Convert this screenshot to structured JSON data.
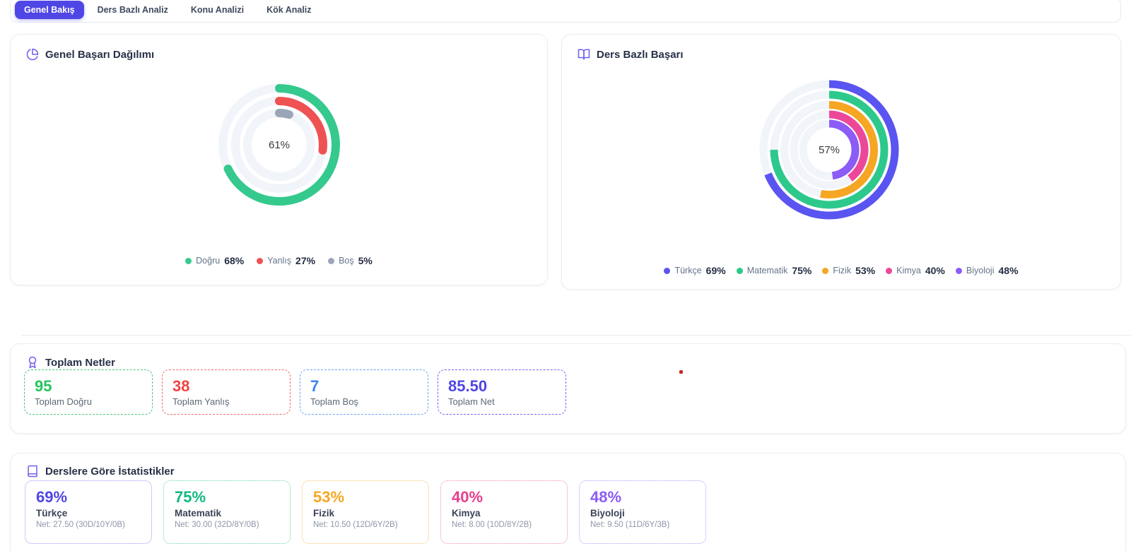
{
  "tabs": [
    {
      "label": "Genel Bakış",
      "active": true
    },
    {
      "label": "Ders Bazlı Analiz",
      "active": false
    },
    {
      "label": "Konu Analizi",
      "active": false
    },
    {
      "label": "Kök Analiz",
      "active": false
    }
  ],
  "colors": {
    "accent": "#4f46e5",
    "green": "#35c98e",
    "red": "#ee5253",
    "gray": "#9aa6b8",
    "orange": "#f5a623",
    "pink": "#ec4899",
    "purple": "#8b5cf6",
    "track": "#f1f4f9"
  },
  "cards": {
    "distribution": {
      "title": "Genel Başarı Dağılımı",
      "icon": "pie-chart-icon",
      "center_label": "61%",
      "legend": [
        {
          "label": "Doğru",
          "value": "68%",
          "color": "#35c98e"
        },
        {
          "label": "Yanlış",
          "value": "27%",
          "color": "#ee5253"
        },
        {
          "label": "Boş",
          "value": "5%",
          "color": "#9aa6b8"
        }
      ]
    },
    "subjects": {
      "title": "Ders Bazlı Başarı",
      "icon": "book-open-icon",
      "center_label": "57%",
      "legend": [
        {
          "label": "Türkçe",
          "value": "69%",
          "color": "#5a54f1"
        },
        {
          "label": "Matematik",
          "value": "75%",
          "color": "#2dc98c"
        },
        {
          "label": "Fizik",
          "value": "53%",
          "color": "#f5a623"
        },
        {
          "label": "Kimya",
          "value": "40%",
          "color": "#ec4899"
        },
        {
          "label": "Biyoloji",
          "value": "48%",
          "color": "#8b5cf6"
        }
      ]
    }
  },
  "chart_data": [
    {
      "type": "pie",
      "variant": "concentric-radial-bars",
      "title": "Genel Başarı Dağılımı",
      "center_label": "61%",
      "unit": "%",
      "start_angle_deg": 0,
      "direction": "clockwise",
      "rounded_caps": true,
      "track_color": "#f1f4f9",
      "series": [
        {
          "name": "Doğru",
          "value": 68,
          "color": "#35c98e"
        },
        {
          "name": "Yanlış",
          "value": 27,
          "color": "#ee5253"
        },
        {
          "name": "Boş",
          "value": 5,
          "color": "#9aa6b8"
        }
      ],
      "legend_position": "bottom"
    },
    {
      "type": "pie",
      "variant": "concentric-radial-bars",
      "title": "Ders Bazlı Başarı",
      "center_label": "57%",
      "unit": "%",
      "start_angle_deg": 0,
      "direction": "clockwise",
      "rounded_caps": false,
      "track_color": "#f1f4f9",
      "series": [
        {
          "name": "Türkçe",
          "value": 69,
          "color": "#5a54f1"
        },
        {
          "name": "Matematik",
          "value": 75,
          "color": "#2dc98c"
        },
        {
          "name": "Fizik",
          "value": 53,
          "color": "#f5a623"
        },
        {
          "name": "Kimya",
          "value": 40,
          "color": "#ec4899"
        },
        {
          "name": "Biyoloji",
          "value": 48,
          "color": "#8b5cf6"
        }
      ],
      "legend_position": "bottom"
    }
  ],
  "totals": {
    "title": "Toplam Netler",
    "icon": "award-icon",
    "stats": [
      {
        "value": "95",
        "label": "Toplam Doğru",
        "color": "#22c55e",
        "border": "#4cc37e"
      },
      {
        "value": "38",
        "label": "Toplam Yanlış",
        "color": "#ef4444",
        "border": "#f16a6a"
      },
      {
        "value": "7",
        "label": "Toplam Boş",
        "color": "#3b82f6",
        "border": "#6aa1f7"
      },
      {
        "value": "85.50",
        "label": "Toplam Net",
        "color": "#4f46e5",
        "border": "#6f66ee"
      }
    ]
  },
  "subject_stats": {
    "title": "Derslere Göre İstatistikler",
    "icon": "book-icon",
    "items": [
      {
        "pct": "69%",
        "name": "Türkçe",
        "net": "Net: 27.50 (30D/10Y/0B)",
        "color": "#4f46e5",
        "border": "#9b91f3"
      },
      {
        "pct": "75%",
        "name": "Matematik",
        "net": "Net: 30.00 (32D/8Y/0B)",
        "color": "#10b981",
        "border": "#6cd4ab"
      },
      {
        "pct": "53%",
        "name": "Fizik",
        "net": "Net: 10.50 (12D/6Y/2B)",
        "color": "#f5a623",
        "border": "#f8c572"
      },
      {
        "pct": "40%",
        "name": "Kimya",
        "net": "Net: 8.00 (10D/8Y/2B)",
        "color": "#e83e8c",
        "border": "#f08bbc"
      },
      {
        "pct": "48%",
        "name": "Biyoloji",
        "net": "Net: 9.50 (11D/6Y/3B)",
        "color": "#8b5cf6",
        "border": "#b89cf9"
      }
    ]
  },
  "marker_dot": {
    "color": "#c62828"
  }
}
